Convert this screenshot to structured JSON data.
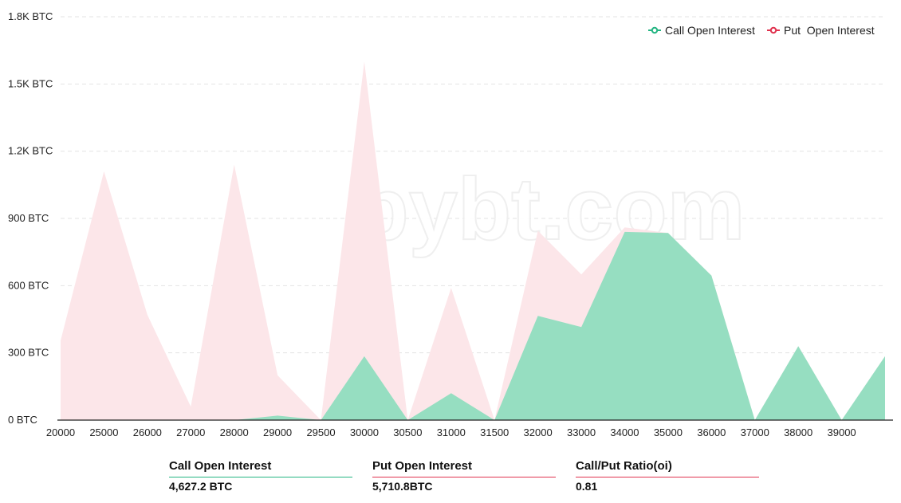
{
  "chart_data": {
    "type": "area",
    "x": [
      "20000",
      "25000",
      "26000",
      "27000",
      "28000",
      "29000",
      "29500",
      "30000",
      "30500",
      "31000",
      "31500",
      "32000",
      "33000",
      "34000",
      "35000",
      "36000",
      "37000",
      "38000",
      "39000",
      "40000"
    ],
    "x_tick_labels": [
      "20000",
      "25000",
      "26000",
      "27000",
      "28000",
      "29000",
      "29500",
      "30000",
      "30500",
      "31000",
      "31500",
      "32000",
      "33000",
      "34000",
      "35000",
      "36000",
      "37000",
      "38000",
      "39000"
    ],
    "y_unit": "BTC",
    "ylim": [
      0,
      1800
    ],
    "y_ticks": [
      0,
      300,
      600,
      900,
      1200,
      1500,
      1800
    ],
    "y_tick_labels": [
      "0 BTC",
      "300 BTC",
      "600 BTC",
      "900 BTC",
      "1.2K BTC",
      "1.5K BTC",
      "1.8K BTC"
    ],
    "grid": true,
    "legend_position": "top-right",
    "series": [
      {
        "name": "Put  Open Interest",
        "color": "#fce6e9",
        "legend_color": "#e0334f",
        "values": [
          355,
          1110,
          470,
          60,
          1140,
          200,
          0,
          1600,
          0,
          590,
          0,
          845,
          650,
          860,
          835,
          645,
          0,
          330,
          0,
          285
        ]
      },
      {
        "name": "Call Open Interest",
        "color": "#96dec1",
        "legend_color": "#24b582",
        "values": [
          0,
          0,
          0,
          0,
          0,
          20,
          0,
          285,
          0,
          120,
          0,
          465,
          415,
          840,
          835,
          645,
          0,
          330,
          0,
          285
        ]
      }
    ]
  },
  "watermark": "bybt.com",
  "summary": [
    {
      "label": "Call Open Interest",
      "value": "4,627.2 BTC",
      "color": "#24b582"
    },
    {
      "label": "Put Open Interest",
      "value": "5,710.8BTC",
      "color": "#e0334f"
    },
    {
      "label": "Call/Put Ratio(oi)",
      "value": "0.81",
      "color": "#e0334f"
    }
  ]
}
